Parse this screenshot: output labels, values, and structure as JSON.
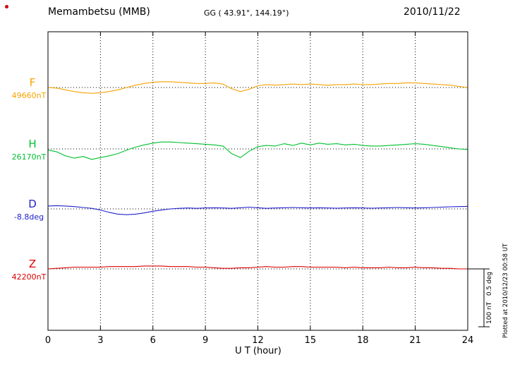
{
  "header": {
    "station": "Memambetsu (MMB)",
    "coords": "GG ( 43.91°, 144.19°)",
    "date": "2010/11/22"
  },
  "axis": {
    "x_label": "U T (hour)"
  },
  "scale_bar": {
    "line1": "100 nT",
    "line2": "0.5 deg"
  },
  "footer": {
    "plotted_at": "Plotted at 2010/12/23 00:58 UT"
  },
  "chart_data": {
    "type": "line",
    "title": "Memambetsu (MMB) magnetogram 2010/11/22",
    "xlabel": "U T (hour)",
    "x_range_hours": [
      0,
      24
    ],
    "x_ticks": [
      0,
      3,
      6,
      9,
      12,
      15,
      18,
      21,
      24
    ],
    "x_step_hours": 0.5,
    "grid": "dotted vertical lines every 3 h; dotted horizontal baseline per channel",
    "scale_bar": {
      "nT": 100,
      "deg": 0.5
    },
    "series": [
      {
        "name": "F",
        "unit": "nT",
        "reference": "49660nT",
        "color": "#f5a300",
        "offsets": [
          0,
          -1,
          -4,
          -7,
          -9,
          -10,
          -9,
          -7,
          -4,
          0,
          4,
          7,
          9,
          10,
          10,
          9,
          8,
          7,
          7,
          8,
          6,
          -2,
          -7,
          -3,
          3,
          5,
          4,
          5,
          6,
          5,
          6,
          5,
          4,
          5,
          5,
          6,
          5,
          5,
          6,
          7,
          7,
          8,
          8,
          7,
          6,
          5,
          4,
          2,
          0
        ]
      },
      {
        "name": "H",
        "unit": "nT",
        "reference": "26170nT",
        "color": "#00c030",
        "offsets": [
          -2,
          -5,
          -12,
          -16,
          -13,
          -18,
          -15,
          -12,
          -8,
          -2,
          3,
          7,
          10,
          12,
          12,
          11,
          10,
          9,
          8,
          7,
          5,
          -8,
          -15,
          -4,
          4,
          6,
          5,
          9,
          6,
          10,
          7,
          10,
          8,
          9,
          7,
          8,
          6,
          5,
          5,
          6,
          7,
          8,
          9,
          8,
          6,
          4,
          2,
          0,
          -1
        ]
      },
      {
        "name": "D",
        "unit": "deg",
        "reference": "-8.8deg",
        "color": "#2121cc",
        "offsets": [
          0.025,
          0.028,
          0.025,
          0.02,
          0.012,
          0.005,
          -0.01,
          -0.03,
          -0.045,
          -0.05,
          -0.045,
          -0.035,
          -0.02,
          -0.01,
          0,
          0.005,
          0.008,
          0.005,
          0.008,
          0.01,
          0.008,
          0.005,
          0.01,
          0.015,
          0.01,
          0.005,
          0.008,
          0.01,
          0.012,
          0.01,
          0.008,
          0.01,
          0.008,
          0.006,
          0.008,
          0.01,
          0.008,
          0.006,
          0.008,
          0.01,
          0.012,
          0.01,
          0.008,
          0.01,
          0.012,
          0.015,
          0.018,
          0.02,
          0.022
        ]
      },
      {
        "name": "Z",
        "unit": "nT",
        "reference": "42200nT",
        "color": "#dd0000",
        "offsets": [
          0,
          1,
          2,
          3,
          3,
          3,
          3,
          4,
          4,
          4,
          4,
          5,
          5,
          5,
          4,
          4,
          4,
          3,
          3,
          2,
          1,
          1,
          2,
          2,
          3,
          4,
          3,
          3,
          4,
          4,
          3,
          3,
          3,
          3,
          2,
          3,
          2,
          2,
          2,
          3,
          2,
          2,
          3,
          2,
          2,
          1,
          1,
          0,
          0
        ]
      }
    ]
  }
}
